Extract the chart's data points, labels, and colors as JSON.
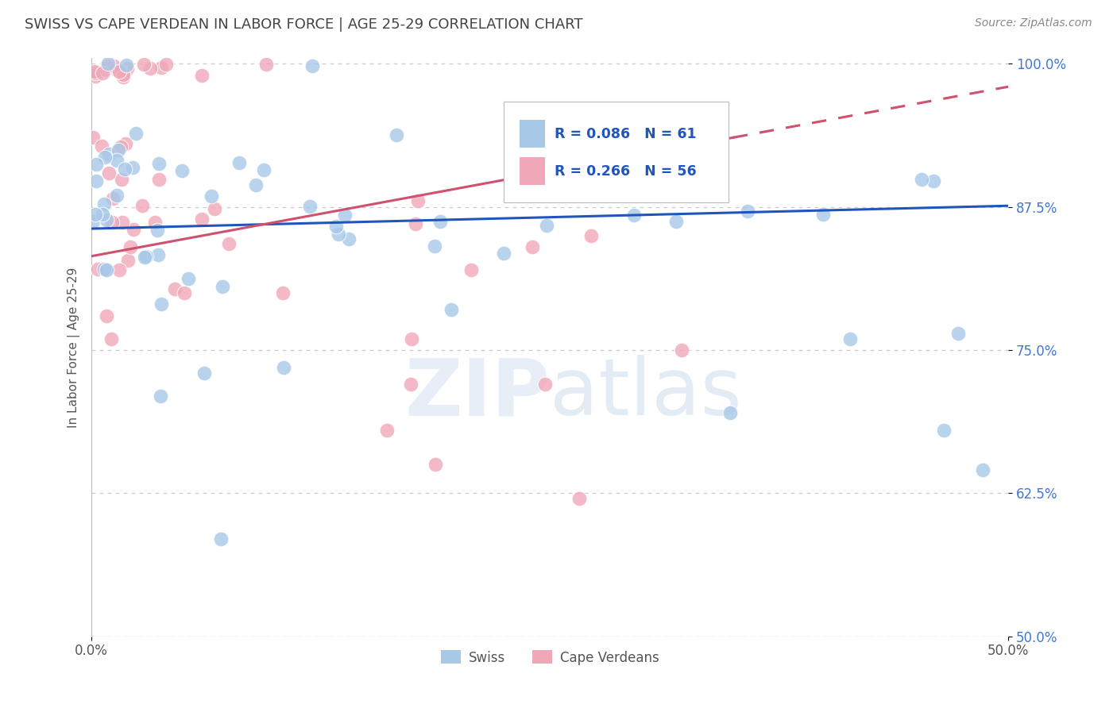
{
  "title": "SWISS VS CAPE VERDEAN IN LABOR FORCE | AGE 25-29 CORRELATION CHART",
  "source": "Source: ZipAtlas.com",
  "ylabel": "In Labor Force | Age 25-29",
  "xlim": [
    0.0,
    0.5
  ],
  "ylim": [
    0.5,
    1.005
  ],
  "xtick_labels": [
    "0.0%",
    "50.0%"
  ],
  "ytick_labels": [
    "50.0%",
    "62.5%",
    "75.0%",
    "87.5%",
    "100.0%"
  ],
  "ytick_values": [
    0.5,
    0.625,
    0.75,
    0.875,
    1.0
  ],
  "swiss_R": 0.086,
  "swiss_N": 61,
  "cape_R": 0.266,
  "cape_N": 56,
  "swiss_color": "#a8c8e8",
  "cape_color": "#f0a8b8",
  "swiss_line_color": "#2255bb",
  "cape_line_color": "#d05070",
  "tick_color": "#4477cc",
  "background_color": "#ffffff",
  "title_color": "#444444",
  "title_fontsize": 13,
  "swiss_trend_x0": 0.0,
  "swiss_trend_y0": 0.856,
  "swiss_trend_x1": 0.5,
  "swiss_trend_y1": 0.876,
  "cape_trend_x0": 0.0,
  "cape_trend_y0": 0.832,
  "cape_trend_x1": 0.5,
  "cape_trend_y1": 0.98
}
